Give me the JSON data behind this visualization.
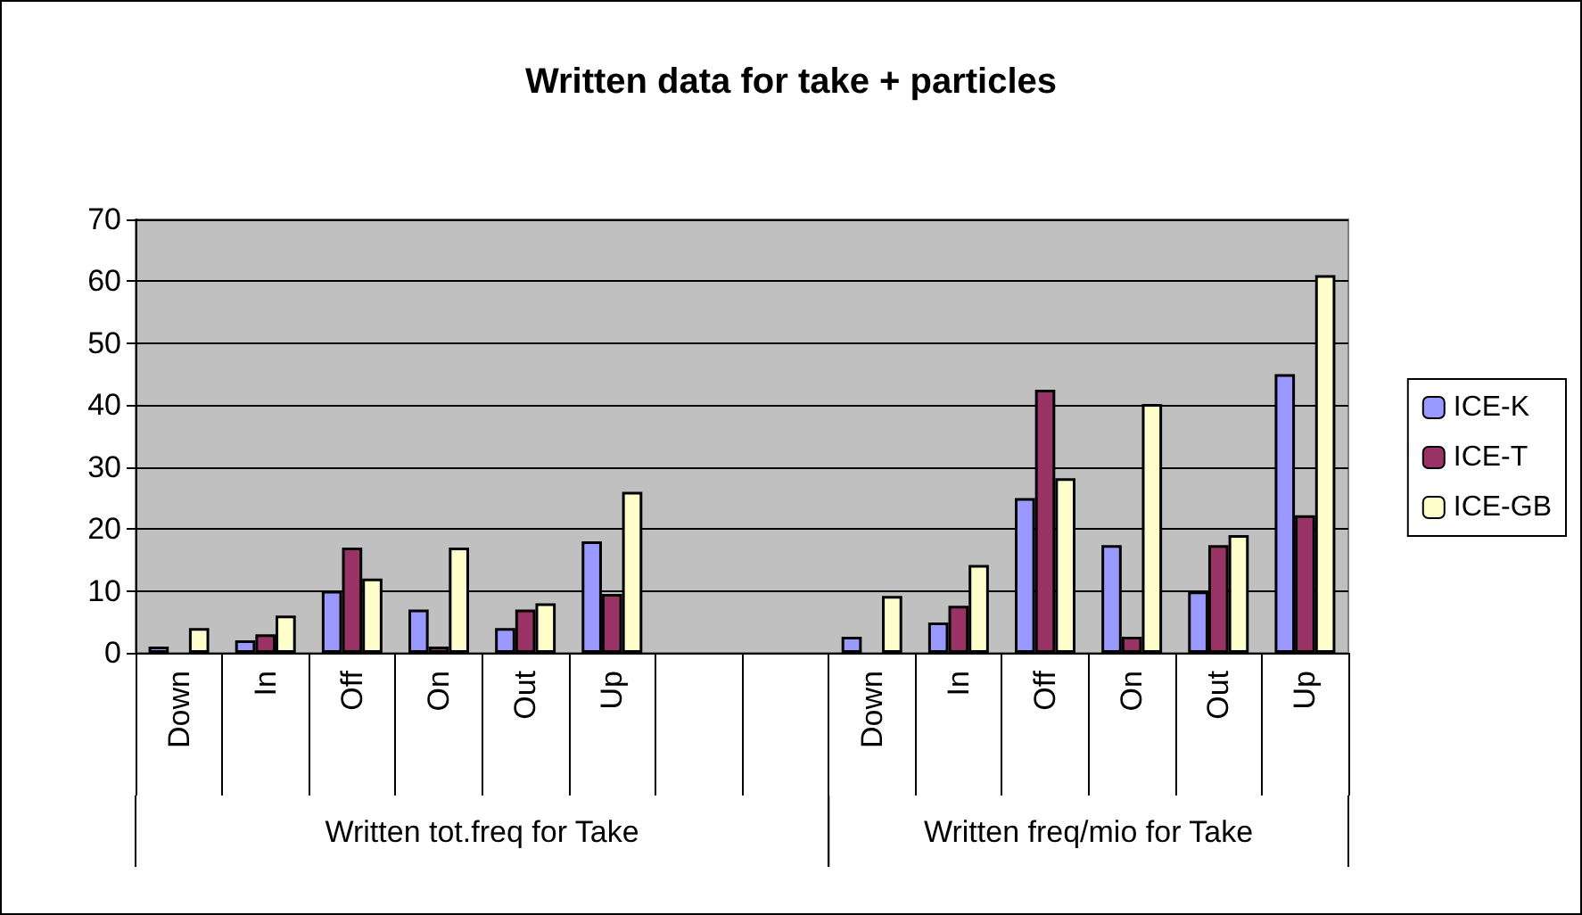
{
  "chart_data": {
    "type": "bar",
    "title": "Written data for take + particles",
    "categories": [
      "Down",
      "In",
      "Off",
      "On",
      "Out",
      "Up",
      null,
      null,
      "Down",
      "In",
      "Off",
      "On",
      "Out",
      "Up"
    ],
    "series": [
      {
        "name": "ICE-K",
        "color": "#9999ff",
        "values": [
          1,
          2,
          10,
          7,
          4,
          18,
          null,
          null,
          2.6,
          4.9,
          25,
          17.4,
          9.9,
          45
        ]
      },
      {
        "name": "ICE-T",
        "color": "#993366",
        "values": [
          0,
          3,
          17,
          1,
          7,
          9.5,
          null,
          null,
          0,
          7.6,
          42.5,
          2.6,
          17.4,
          22.2
        ]
      },
      {
        "name": "ICE-GB",
        "color": "#ffffcc",
        "values": [
          4,
          6,
          12,
          17,
          8,
          26,
          null,
          null,
          9.2,
          14.2,
          28.2,
          40.2,
          19,
          61
        ]
      }
    ],
    "annotations": [
      "Written tot.freq for Take",
      "Written freq/mio for Take"
    ],
    "ylim": [
      0,
      70
    ],
    "yticks": [
      0,
      10,
      20,
      30,
      40,
      50,
      60,
      70
    ],
    "grid": "y",
    "legend": "right"
  }
}
